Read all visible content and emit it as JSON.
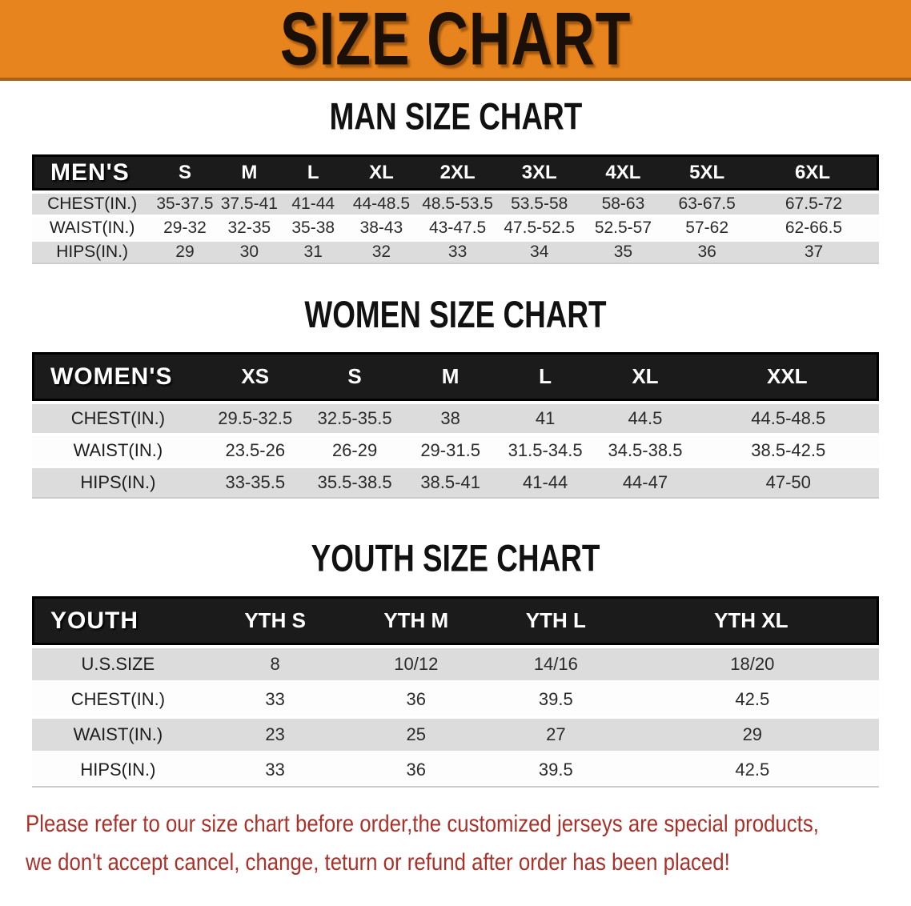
{
  "banner": {
    "title": "SIZE CHART",
    "bg_color": "#E8841D",
    "text_color": "#1A1008"
  },
  "sections": [
    {
      "id": "men",
      "heading": "MAN SIZE CHART",
      "group_label": "MEN'S",
      "columns": [
        "S",
        "M",
        "L",
        "XL",
        "2XL",
        "3XL",
        "4XL",
        "5XL",
        "6XL"
      ],
      "rows": [
        {
          "label": "CHEST(IN.)",
          "values": [
            "35-37.5",
            "37.5-41",
            "41-44",
            "44-48.5",
            "48.5-53.5",
            "53.5-58",
            "58-63",
            "63-67.5",
            "67.5-72"
          ]
        },
        {
          "label": "WAIST(IN.)",
          "values": [
            "29-32",
            "32-35",
            "35-38",
            "38-43",
            "43-47.5",
            "47.5-52.5",
            "52.5-57",
            "57-62",
            "62-66.5"
          ]
        },
        {
          "label": "HIPS(IN.)",
          "values": [
            "29",
            "30",
            "31",
            "32",
            "33",
            "34",
            "35",
            "36",
            "37"
          ]
        }
      ]
    },
    {
      "id": "women",
      "heading": "WOMEN SIZE CHART",
      "group_label": "WOMEN'S",
      "columns": [
        "XS",
        "S",
        "M",
        "L",
        "XL",
        "XXL"
      ],
      "rows": [
        {
          "label": "CHEST(IN.)",
          "values": [
            "29.5-32.5",
            "32.5-35.5",
            "38",
            "41",
            "44.5",
            "44.5-48.5"
          ]
        },
        {
          "label": "WAIST(IN.)",
          "values": [
            "23.5-26",
            "26-29",
            "29-31.5",
            "31.5-34.5",
            "34.5-38.5",
            "38.5-42.5"
          ]
        },
        {
          "label": "HIPS(IN.)",
          "values": [
            "33-35.5",
            "35.5-38.5",
            "38.5-41",
            "41-44",
            "44-47",
            "47-50"
          ]
        }
      ]
    },
    {
      "id": "youth",
      "heading": "YOUTH SIZE CHART",
      "group_label": "YOUTH",
      "columns": [
        "YTH S",
        "YTH M",
        "YTH L",
        "YTH XL"
      ],
      "rows": [
        {
          "label": "U.S.SIZE",
          "values": [
            "8",
            "10/12",
            "14/16",
            "18/20"
          ]
        },
        {
          "label": "CHEST(IN.)",
          "values": [
            "33",
            "36",
            "39.5",
            "42.5"
          ]
        },
        {
          "label": "WAIST(IN.)",
          "values": [
            "23",
            "25",
            "27",
            "29"
          ]
        },
        {
          "label": "HIPS(IN.)",
          "values": [
            "33",
            "36",
            "39.5",
            "42.5"
          ]
        }
      ]
    }
  ],
  "disclaimer": {
    "line1": "Please refer to our size chart before order,the customized jerseys are special products,",
    "line2": "we don't accept cancel, change, teturn or refund after order has been placed!",
    "color": "#A93129"
  }
}
